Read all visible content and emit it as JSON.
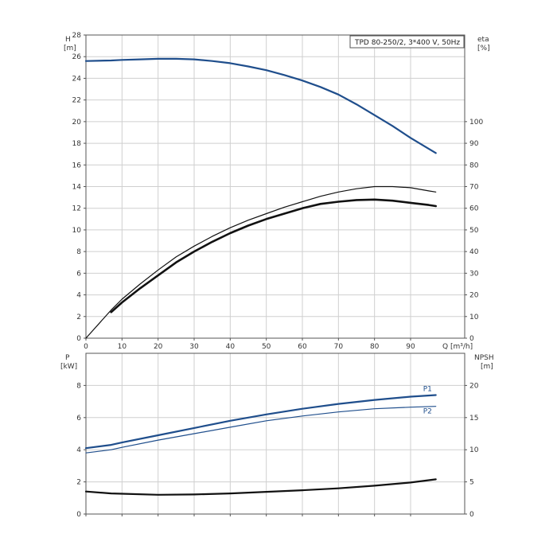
{
  "chart_data": [
    {
      "type": "line",
      "title": "TPD 80-250/2, 3*400 V, 50Hz",
      "xlabel": "Q [m³/h]",
      "xlim": [
        0,
        105
      ],
      "x_ticks": [
        0,
        10,
        20,
        30,
        40,
        50,
        60,
        70,
        80,
        90
      ],
      "y_left": {
        "label_line1": "H",
        "label_line2": "[m]",
        "lim": [
          0,
          28
        ],
        "ticks": [
          0,
          2,
          4,
          6,
          8,
          10,
          12,
          14,
          16,
          18,
          20,
          22,
          24,
          26,
          28
        ]
      },
      "y_right": {
        "label_line1": "eta",
        "label_line2": "[%]",
        "lim": [
          0,
          140
        ],
        "ticks": [
          0,
          10,
          20,
          30,
          40,
          50,
          60,
          70,
          80,
          90,
          100
        ]
      },
      "grid": true,
      "series": [
        {
          "axis": "left",
          "color": "#1f4e8c",
          "width": 2.2,
          "x": [
            0,
            7,
            10,
            15,
            20,
            25,
            30,
            35,
            40,
            45,
            50,
            55,
            60,
            65,
            70,
            75,
            80,
            85,
            90,
            95,
            97
          ],
          "y": [
            25.6,
            25.65,
            25.7,
            25.75,
            25.8,
            25.8,
            25.75,
            25.6,
            25.4,
            25.1,
            24.75,
            24.3,
            23.8,
            23.2,
            22.5,
            21.6,
            20.6,
            19.6,
            18.5,
            17.5,
            17.1
          ]
        },
        {
          "axis": "right",
          "color": "#111111",
          "width": 1.2,
          "x": [
            0,
            7,
            10,
            15,
            20,
            25,
            30,
            35,
            40,
            45,
            50,
            55,
            60,
            65,
            70,
            75,
            80,
            85,
            90,
            95,
            97
          ],
          "y": [
            0,
            13,
            18,
            25,
            31.5,
            37.5,
            42.5,
            47,
            51,
            54.5,
            57.5,
            60.5,
            63,
            65.5,
            67.5,
            69,
            70,
            70,
            69.5,
            68,
            67.5
          ]
        },
        {
          "axis": "right",
          "color": "#111111",
          "width": 2.6,
          "x": [
            7,
            10,
            15,
            20,
            25,
            30,
            35,
            40,
            45,
            50,
            55,
            60,
            65,
            70,
            75,
            80,
            85,
            90,
            95,
            97
          ],
          "y": [
            12,
            16.5,
            23,
            29,
            35,
            40,
            44.5,
            48.5,
            52,
            55,
            57.5,
            60,
            62,
            63,
            63.8,
            64,
            63.5,
            62.5,
            61.5,
            61
          ]
        }
      ]
    },
    {
      "type": "line",
      "xlim": [
        0,
        105
      ],
      "x_ticks": [
        0,
        10,
        20,
        30,
        40,
        50,
        60,
        70,
        80,
        90
      ],
      "y_left": {
        "label_line1": "P",
        "label_line2": "[kW]",
        "lim": [
          0,
          10
        ],
        "ticks": [
          0,
          2,
          4,
          6,
          8
        ]
      },
      "y_right": {
        "label_line1": "NPSH",
        "label_line2": "[m]",
        "lim": [
          0,
          25
        ],
        "ticks": [
          0,
          5,
          10,
          15,
          20
        ]
      },
      "grid": true,
      "series": [
        {
          "name": "P1",
          "axis": "left",
          "color": "#1f4e8c",
          "width": 2.2,
          "x": [
            0,
            7,
            10,
            20,
            30,
            40,
            50,
            60,
            70,
            80,
            90,
            97
          ],
          "y": [
            4.1,
            4.3,
            4.45,
            4.9,
            5.35,
            5.8,
            6.2,
            6.55,
            6.85,
            7.1,
            7.3,
            7.4
          ]
        },
        {
          "name": "P2",
          "axis": "left",
          "color": "#1f4e8c",
          "width": 1.2,
          "x": [
            0,
            7,
            10,
            20,
            30,
            40,
            50,
            60,
            70,
            80,
            90,
            97
          ],
          "y": [
            3.8,
            4.0,
            4.15,
            4.6,
            5.0,
            5.4,
            5.8,
            6.1,
            6.35,
            6.55,
            6.65,
            6.7
          ]
        },
        {
          "axis": "right",
          "color": "#111111",
          "width": 2.2,
          "x": [
            0,
            7,
            10,
            20,
            30,
            40,
            50,
            60,
            70,
            80,
            90,
            97
          ],
          "y": [
            3.5,
            3.2,
            3.15,
            3.0,
            3.05,
            3.2,
            3.45,
            3.7,
            4.0,
            4.4,
            4.9,
            5.4
          ]
        }
      ]
    }
  ]
}
